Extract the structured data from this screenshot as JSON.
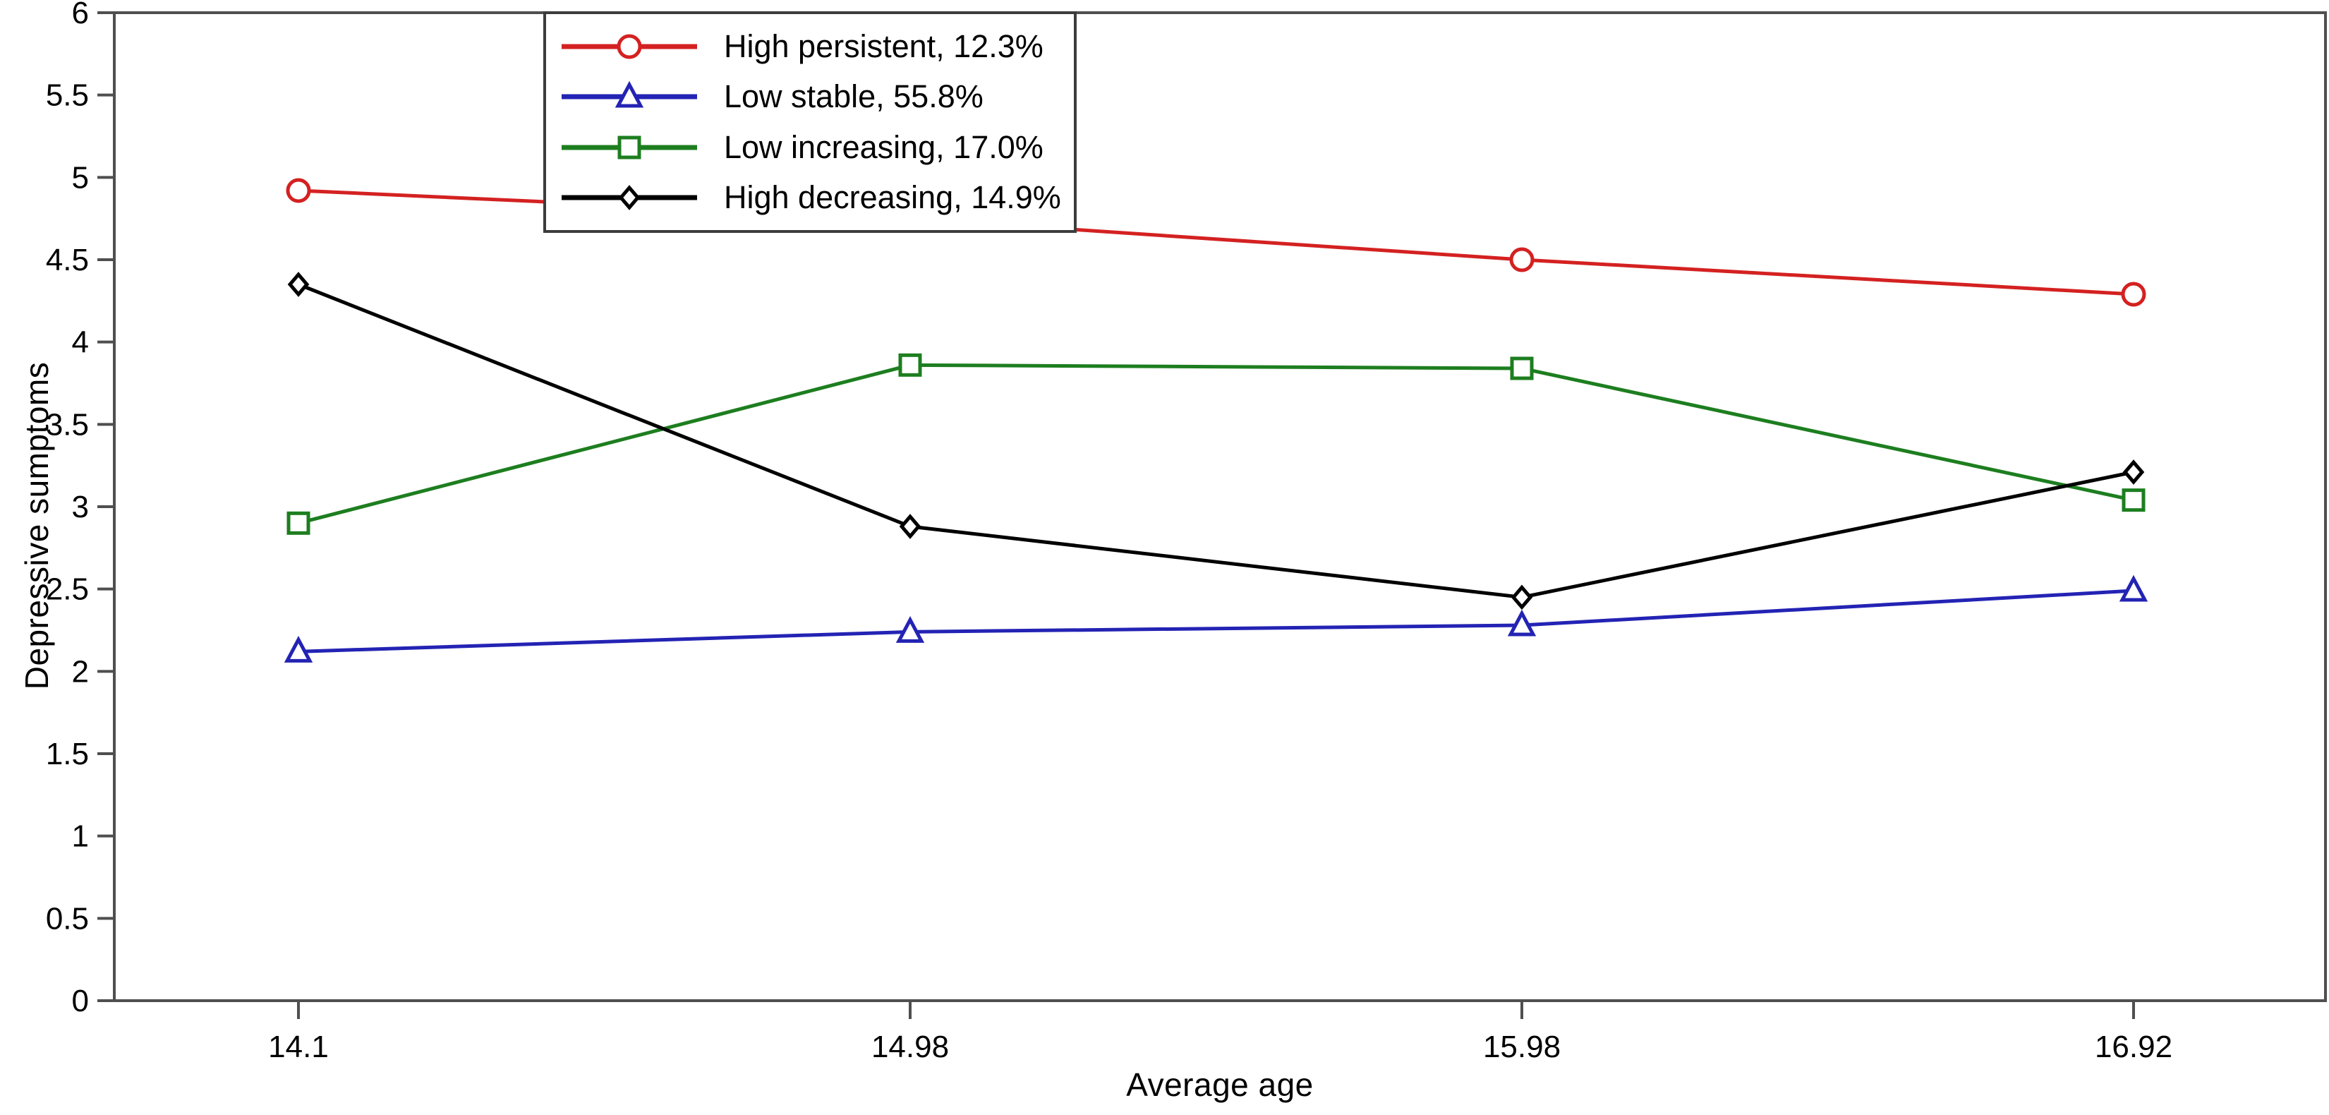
{
  "chart_data": {
    "type": "line",
    "title": "",
    "xlabel": "Average age",
    "ylabel": "Depressive sumptoms",
    "x_categories": [
      "14.1",
      "14.98",
      "15.98",
      "16.92"
    ],
    "ylim": [
      0,
      6
    ],
    "y_tick_step": 0.5,
    "y_ticks": [
      "0",
      "0.5",
      "1",
      "1.5",
      "2",
      "2.5",
      "3",
      "3.5",
      "4",
      "4.5",
      "5",
      "5.5",
      "6"
    ],
    "grid": false,
    "legend_position": "inside-top-left",
    "series": [
      {
        "name": "High persistent, 12.3%",
        "color": "#d42121",
        "marker": "circle",
        "values": [
          4.92,
          4.75,
          4.5,
          4.29
        ]
      },
      {
        "name": "Low stable, 55.8%",
        "color": "#2323b4",
        "marker": "triangle",
        "values": [
          2.12,
          2.24,
          2.28,
          2.49
        ]
      },
      {
        "name": "Low increasing, 17.0%",
        "color": "#1d7e1f",
        "marker": "square",
        "values": [
          2.9,
          3.86,
          3.84,
          3.04
        ]
      },
      {
        "name": "High decreasing, 14.9%",
        "color": "#000000",
        "marker": "diamond",
        "values": [
          4.35,
          2.88,
          2.45,
          3.21
        ]
      }
    ],
    "frame_color": "#4f4f4f"
  }
}
